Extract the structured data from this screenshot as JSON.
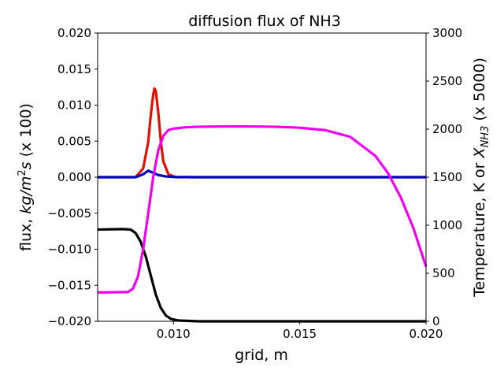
{
  "chart_data": {
    "type": "line",
    "title": "diffusion flux of NH3",
    "xlabel": "grid, m",
    "ylabel_left": "flux, kg/m²s (x 100)",
    "ylabel_right": "Temperature, K or X_NH3 (x 5000)",
    "xlim": [
      0.007,
      0.02
    ],
    "ylim_left": [
      -0.02,
      0.02
    ],
    "ylim_right": [
      0,
      3000
    ],
    "x_ticks": [
      "0.010",
      "0.015",
      "0.020"
    ],
    "x_tick_values": [
      0.01,
      0.015,
      0.02
    ],
    "y_left_ticks": [
      "0.020",
      "0.015",
      "0.010",
      "0.005",
      "0.000",
      "−0.005",
      "−0.010",
      "−0.015",
      "−0.020"
    ],
    "y_left_tick_values": [
      0.02,
      0.015,
      0.01,
      0.005,
      0.0,
      -0.005,
      -0.01,
      -0.015,
      -0.02
    ],
    "y_right_ticks": [
      "3000",
      "2500",
      "2000",
      "1500",
      "1000",
      "500",
      "0"
    ],
    "y_right_tick_values": [
      3000,
      2500,
      2000,
      1500,
      1000,
      500,
      0
    ],
    "grid": false,
    "legend": "none",
    "series": [
      {
        "axis": "left",
        "color": "#dd1100",
        "x": [
          0.007,
          0.0085,
          0.0088,
          0.009,
          0.0091,
          0.0092,
          0.00925,
          0.0093,
          0.0094,
          0.0095,
          0.0096,
          0.0098,
          0.0101,
          0.0105,
          0.02
        ],
        "values": [
          0.0,
          0.0,
          0.0012,
          0.0048,
          0.0085,
          0.0115,
          0.0123,
          0.012,
          0.009,
          0.005,
          0.0022,
          0.0004,
          0.0,
          0.0,
          0.0
        ]
      },
      {
        "axis": "left",
        "color": "#0000cc",
        "x": [
          0.007,
          0.0085,
          0.0088,
          0.009,
          0.0092,
          0.0094,
          0.0097,
          0.01,
          0.011,
          0.02
        ],
        "values": [
          0.0,
          0.0,
          0.0004,
          0.0009,
          0.0006,
          0.0003,
          0.0001,
          3e-05,
          0.0,
          0.0
        ]
      },
      {
        "axis": "right",
        "color": "#000000",
        "x": [
          0.007,
          0.008,
          0.0083,
          0.0085,
          0.0087,
          0.0089,
          0.0091,
          0.0093,
          0.0095,
          0.0097,
          0.0099,
          0.0102,
          0.011,
          0.02
        ],
        "values": [
          955,
          960,
          955,
          920,
          830,
          680,
          480,
          280,
          140,
          60,
          25,
          8,
          0,
          0
        ]
      },
      {
        "axis": "right",
        "color": "#ee00ee",
        "x": [
          0.007,
          0.0082,
          0.0084,
          0.0086,
          0.0088,
          0.009,
          0.0092,
          0.0094,
          0.0096,
          0.0098,
          0.01,
          0.0105,
          0.011,
          0.012,
          0.013,
          0.014,
          0.015,
          0.016,
          0.017,
          0.018,
          0.0185,
          0.019,
          0.0195,
          0.02
        ],
        "values": [
          300,
          305,
          340,
          470,
          750,
          1120,
          1500,
          1780,
          1930,
          1990,
          2005,
          2020,
          2025,
          2028,
          2028,
          2025,
          2015,
          1990,
          1920,
          1720,
          1540,
          1290,
          970,
          570
        ]
      }
    ]
  }
}
